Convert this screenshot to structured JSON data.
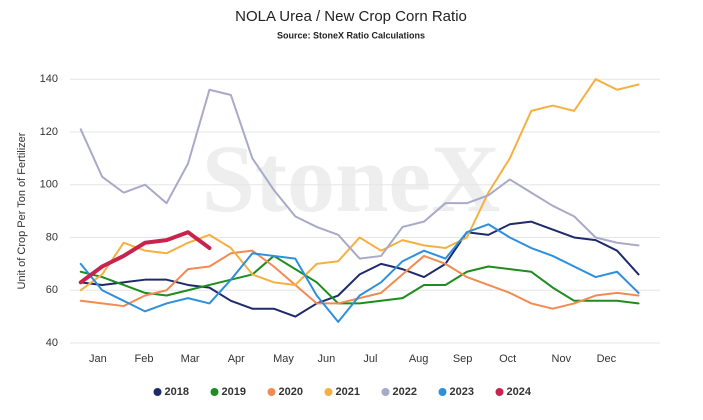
{
  "chart_data": {
    "type": "line",
    "title": "NOLA Urea / New Crop Corn Ratio",
    "subtitle": "Source: StoneX Ratio Calculations",
    "watermark": "StoneX",
    "y_label": "Unit of Crop Per Ton of Fertilizer",
    "x": [
      1,
      3,
      5,
      7,
      9,
      11,
      13,
      15,
      17,
      19,
      21,
      23,
      25,
      27,
      29,
      31,
      33,
      35,
      37,
      39,
      41,
      43,
      45,
      47,
      49,
      51,
      53
    ],
    "xlim": [
      0,
      55
    ],
    "xticks": [
      {
        "value": 2.6,
        "label": "Jan"
      },
      {
        "value": 6.9,
        "label": "Feb"
      },
      {
        "value": 11.2,
        "label": "Mar"
      },
      {
        "value": 15.5,
        "label": "Apr"
      },
      {
        "value": 19.9,
        "label": "May"
      },
      {
        "value": 23.9,
        "label": "Jun"
      },
      {
        "value": 28.0,
        "label": "Jul"
      },
      {
        "value": 32.5,
        "label": "Aug"
      },
      {
        "value": 36.6,
        "label": "Sep"
      },
      {
        "value": 40.8,
        "label": "Oct"
      },
      {
        "value": 45.8,
        "label": "Nov"
      },
      {
        "value": 50.0,
        "label": "Dec"
      }
    ],
    "ylim": [
      40,
      145
    ],
    "yticks": [
      40,
      60,
      80,
      100,
      120,
      140
    ],
    "grid": true,
    "legend": "bottom",
    "series": [
      {
        "name": "2018",
        "color": "#1f2a6b",
        "values": [
          63,
          62,
          63,
          64,
          64,
          62,
          61,
          56,
          53,
          53,
          50,
          55,
          58,
          66,
          70,
          68,
          65,
          70,
          82,
          81,
          85,
          86,
          83,
          80,
          79,
          75,
          66
        ]
      },
      {
        "name": "2019",
        "color": "#1e8c1e",
        "values": [
          67,
          65,
          62,
          59,
          58,
          60,
          62,
          64,
          66,
          73,
          68,
          63,
          55,
          55,
          56,
          57,
          62,
          62,
          67,
          69,
          68,
          67,
          61,
          56,
          56,
          56,
          55
        ]
      },
      {
        "name": "2020",
        "color": "#f28b52",
        "values": [
          56,
          55,
          54,
          58,
          60,
          68,
          69,
          74,
          75,
          69,
          62,
          55,
          55,
          57,
          59,
          66,
          73,
          70,
          65,
          62,
          59,
          55,
          53,
          55,
          58,
          59,
          58
        ]
      },
      {
        "name": "2021",
        "color": "#f5b041",
        "values": [
          60,
          66,
          78,
          75,
          74,
          78,
          81,
          76,
          66,
          63,
          62,
          70,
          71,
          80,
          75,
          79,
          77,
          76,
          80,
          97,
          110,
          128,
          130,
          128,
          140,
          136,
          138
        ]
      },
      {
        "name": "2022",
        "color": "#a9a9c9",
        "values": [
          121,
          103,
          97,
          100,
          93,
          108,
          136,
          134,
          110,
          98,
          88,
          84,
          81,
          72,
          73,
          84,
          86,
          93,
          93,
          96,
          102,
          97,
          92,
          88,
          80,
          78,
          77
        ]
      },
      {
        "name": "2023",
        "color": "#2e8fdd",
        "values": [
          70,
          60,
          56,
          52,
          55,
          57,
          55,
          64,
          74,
          73,
          72,
          58,
          48,
          58,
          63,
          71,
          75,
          72,
          82,
          85,
          80,
          76,
          73,
          69,
          65,
          67,
          59
        ]
      },
      {
        "name": "2024",
        "color": "#c8234f",
        "values": [
          63,
          69,
          73,
          78,
          79,
          82,
          76,
          null,
          null,
          null,
          null,
          null,
          null,
          null,
          null,
          null,
          null,
          null,
          null,
          null,
          null,
          null,
          null,
          null,
          null,
          null,
          null
        ]
      }
    ]
  }
}
